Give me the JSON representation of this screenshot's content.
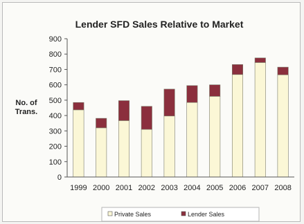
{
  "chart_data": {
    "type": "bar",
    "stacked": true,
    "title": "Lender SFD Sales Relative to Market",
    "ylabel_lines": [
      "No. of",
      "Trans."
    ],
    "xlabel": "",
    "ylim": [
      0,
      900
    ],
    "yticks": [
      0,
      100,
      200,
      300,
      400,
      500,
      600,
      700,
      800,
      900
    ],
    "categories": [
      "1999",
      "2000",
      "2001",
      "2002",
      "2003",
      "2004",
      "2005",
      "2006",
      "2007",
      "2008"
    ],
    "series": [
      {
        "name": "Private Sales",
        "color": "#fbf7d6",
        "values": [
          437,
          320,
          367,
          310,
          397,
          485,
          525,
          667,
          745,
          665
        ]
      },
      {
        "name": "Lender Sales",
        "color": "#8b2f3d",
        "values": [
          48,
          62,
          130,
          150,
          175,
          110,
          75,
          65,
          30,
          50
        ]
      }
    ],
    "grid": false,
    "legend_position": "bottom"
  }
}
